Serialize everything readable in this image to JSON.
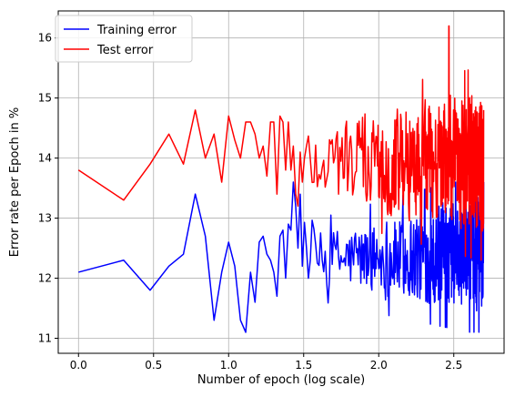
{
  "chart_data": {
    "type": "line",
    "title": "",
    "xlabel": "Number of epoch (log scale)",
    "ylabel": "Error rate per Epoch in %",
    "xlim": [
      -0.135,
      2.835
    ],
    "ylim": [
      10.75,
      16.45
    ],
    "x_scale_note": "log10(epoch), epochs 1..500",
    "xticks": [
      0.0,
      0.5,
      1.0,
      1.5,
      2.0,
      2.5
    ],
    "xtick_labels": [
      "0.0",
      "0.5",
      "1.0",
      "1.5",
      "2.0",
      "2.5"
    ],
    "yticks": [
      11,
      12,
      13,
      14,
      15,
      16
    ],
    "ytick_labels": [
      "11",
      "12",
      "13",
      "14",
      "15",
      "16"
    ],
    "grid": true,
    "legend_position": "top-left",
    "series": [
      {
        "name": "Training error",
        "color": "#0000ff",
        "anchors_x": [
          0.0,
          0.301,
          0.477,
          0.602,
          0.699,
          0.778,
          0.845,
          0.903,
          0.954,
          1.0,
          1.041,
          1.079,
          1.114,
          1.146,
          1.176,
          1.204,
          1.23,
          1.255,
          1.279,
          1.301,
          1.322,
          1.342,
          1.362,
          1.38,
          1.398,
          1.415,
          1.431,
          1.447,
          1.462,
          1.477,
          1.491
        ],
        "anchors_y": [
          12.1,
          12.3,
          11.8,
          12.2,
          12.4,
          13.4,
          12.7,
          11.3,
          12.1,
          12.6,
          12.2,
          11.3,
          11.1,
          12.1,
          11.6,
          12.6,
          12.7,
          12.4,
          12.3,
          12.1,
          11.7,
          12.7,
          12.8,
          12.0,
          12.9,
          12.8,
          13.6,
          13.2,
          12.5,
          13.4,
          12.2
        ],
        "noisy_tail": {
          "from_epoch": 32,
          "to_epoch": 500,
          "center_start": 12.3,
          "center_end": 12.4,
          "spread_start": 0.35,
          "spread_end": 0.75,
          "min": 11.1,
          "max": 13.6
        }
      },
      {
        "name": "Test error",
        "color": "#ff0000",
        "anchors_x": [
          0.0,
          0.301,
          0.477,
          0.602,
          0.699,
          0.778,
          0.845,
          0.903,
          0.954,
          1.0,
          1.041,
          1.079,
          1.114,
          1.146,
          1.176,
          1.204,
          1.23,
          1.255,
          1.279,
          1.301,
          1.322,
          1.342,
          1.362,
          1.38,
          1.398,
          1.415,
          1.431,
          1.447,
          1.462,
          1.477,
          1.491
        ],
        "anchors_y": [
          13.8,
          13.3,
          13.9,
          14.4,
          13.9,
          14.8,
          14.0,
          14.4,
          13.6,
          14.7,
          14.3,
          14.0,
          14.6,
          14.6,
          14.4,
          14.0,
          14.2,
          13.7,
          14.6,
          14.6,
          13.4,
          14.7,
          14.6,
          13.8,
          14.6,
          13.8,
          14.2,
          13.4,
          13.2,
          14.1,
          13.6
        ],
        "noisy_tail": {
          "from_epoch": 32,
          "to_epoch": 500,
          "center_start": 14.0,
          "center_end": 13.9,
          "spread_start": 0.5,
          "spread_end": 0.9,
          "min": 12.3,
          "max": 16.2,
          "spike": {
            "x": 2.467,
            "y": 16.2
          }
        }
      }
    ]
  }
}
